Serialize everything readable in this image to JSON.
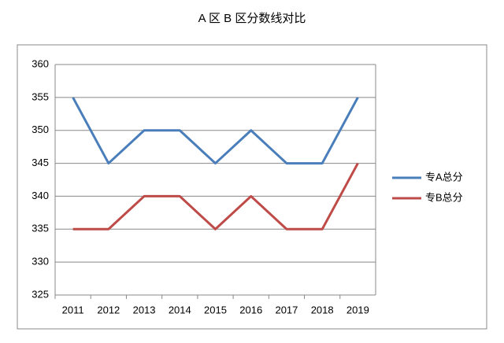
{
  "chart_data": {
    "type": "line",
    "title": "A 区 B 区分数线对比",
    "categories": [
      "2011",
      "2012",
      "2013",
      "2014",
      "2015",
      "2016",
      "2017",
      "2018",
      "2019"
    ],
    "series": [
      {
        "name": "专A总分",
        "color": "#4a7ebb",
        "values": [
          355,
          345,
          350,
          350,
          345,
          350,
          345,
          345,
          355
        ]
      },
      {
        "name": "专B总分",
        "color": "#be4b48",
        "values": [
          335,
          335,
          340,
          340,
          335,
          340,
          335,
          335,
          345
        ]
      }
    ],
    "ylim": [
      325,
      360
    ],
    "yticks": [
      325,
      330,
      335,
      340,
      345,
      350,
      355,
      360
    ],
    "grid": true,
    "legend": "right"
  }
}
